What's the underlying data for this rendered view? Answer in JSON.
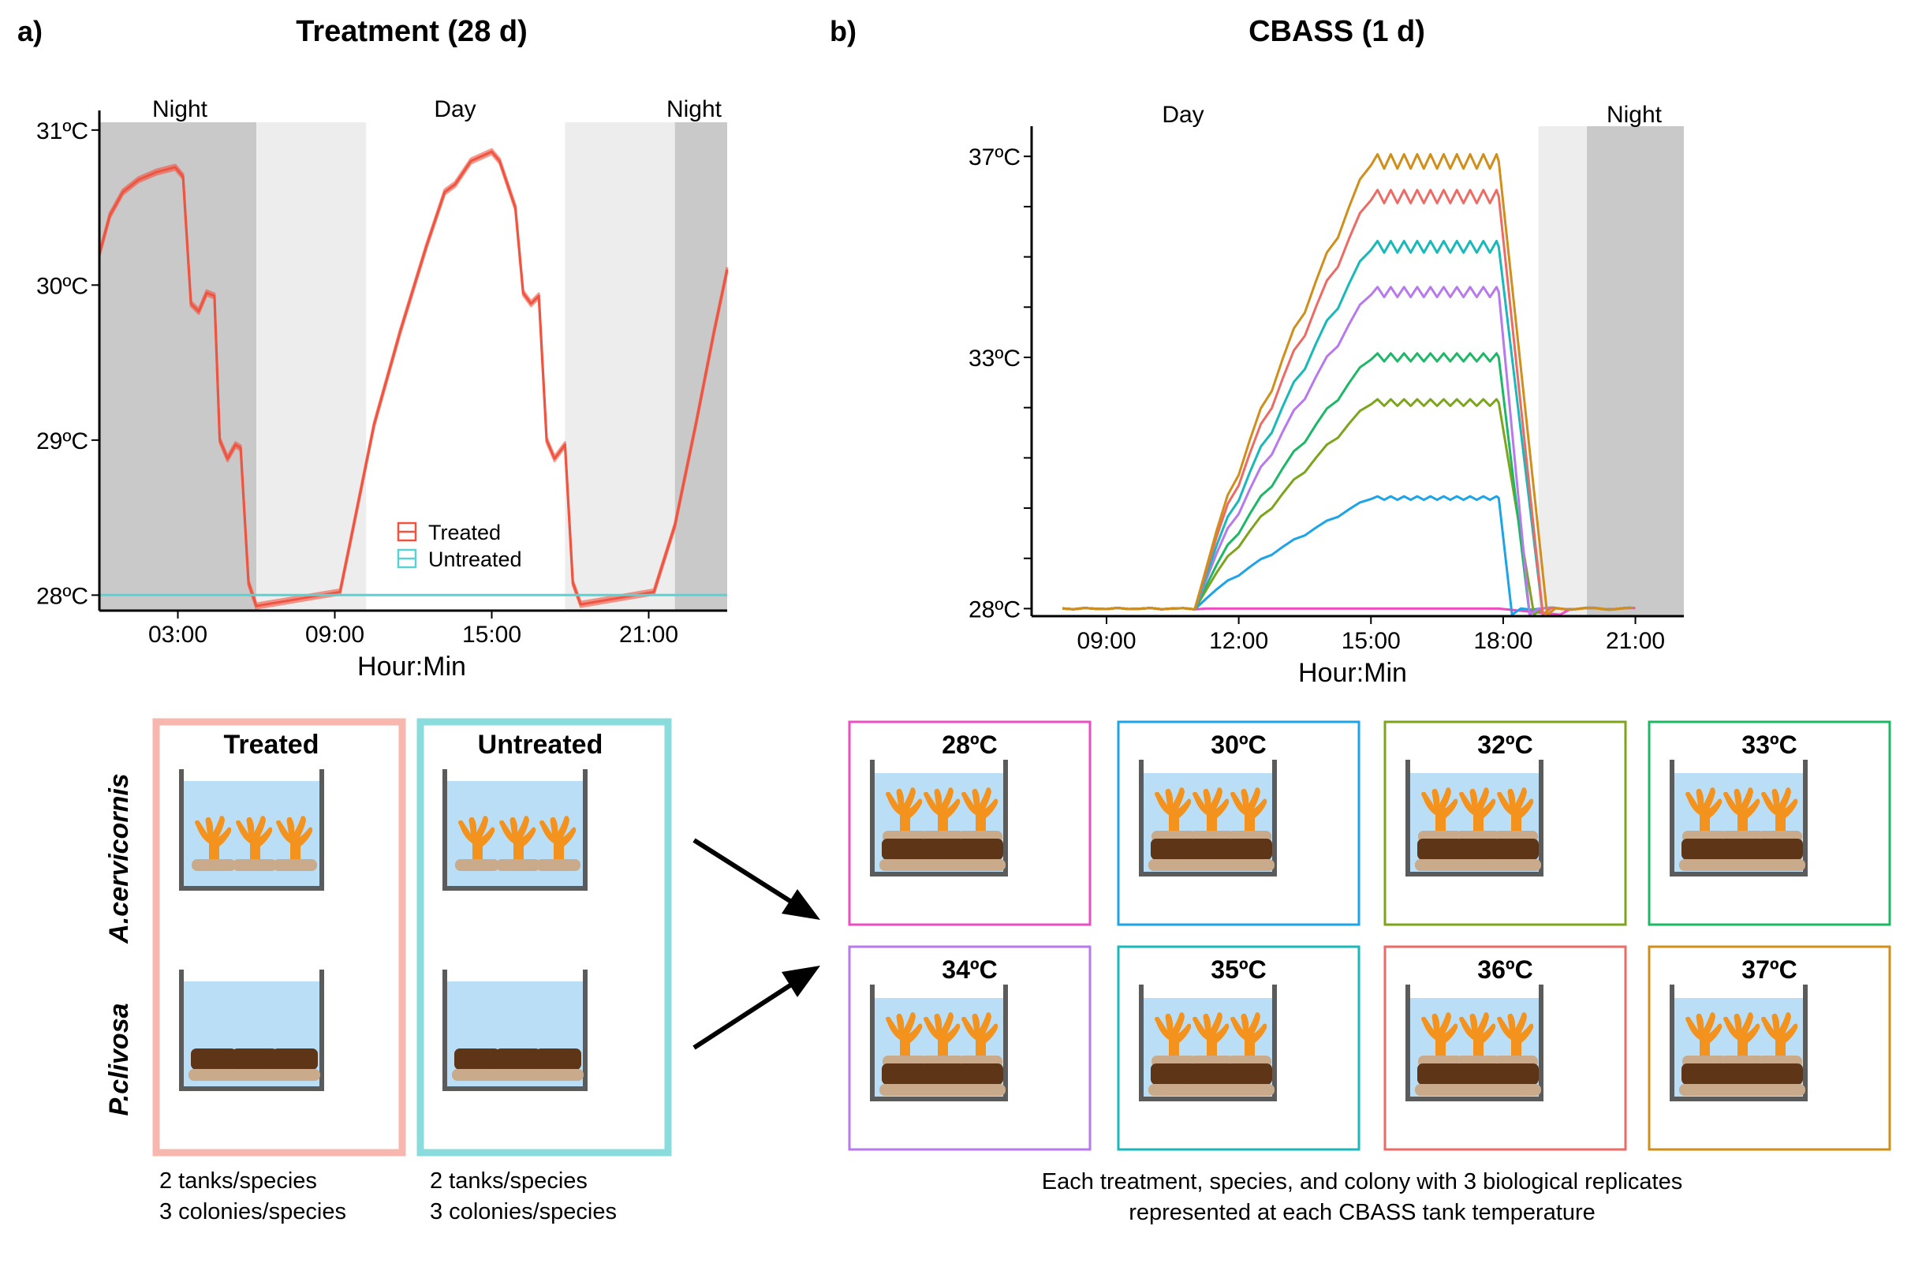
{
  "panel_a": {
    "label": "a)",
    "title": "Treatment (28 d)",
    "periods": [
      "Night",
      "Day",
      "Night"
    ],
    "legend": [
      {
        "label": "Treated",
        "color": "#F0533F"
      },
      {
        "label": "Untreated",
        "color": "#5CD1D4"
      }
    ],
    "boxes": [
      {
        "title": "Treated",
        "color": "#F7B7AE",
        "note": [
          "2 tanks/species",
          "3 colonies/species"
        ]
      },
      {
        "title": "Untreated",
        "color": "#8ADCDC",
        "note": [
          "2 tanks/species",
          "3 colonies/species"
        ]
      }
    ],
    "species": [
      "A.cervicornis",
      "P.clivosa"
    ]
  },
  "panel_b": {
    "label": "b)",
    "title": "CBASS (1 d)",
    "periods": [
      "Day",
      "Night"
    ],
    "tanks": [
      {
        "label": "28ºC",
        "color": "#EE4DC0"
      },
      {
        "label": "30ºC",
        "color": "#1CA3E8"
      },
      {
        "label": "32ºC",
        "color": "#7CA51C"
      },
      {
        "label": "33ºC",
        "color": "#1DB866"
      },
      {
        "label": "34ºC",
        "color": "#B878EE"
      },
      {
        "label": "35ºC",
        "color": "#19B8BA"
      },
      {
        "label": "36ºC",
        "color": "#EE6B65"
      },
      {
        "label": "37ºC",
        "color": "#D08E1A"
      }
    ],
    "note": [
      "Each treatment, species, and colony with 3 biological replicates",
      "represented at each CBASS tank temperature"
    ]
  },
  "chart_data": [
    {
      "type": "line",
      "title": "Treatment (28 d)",
      "xlabel": "Hour:Min",
      "ylabel": "",
      "x_ticks": [
        "03:00",
        "09:00",
        "15:00",
        "21:00"
      ],
      "y_ticks": [
        "28ºC",
        "29ºC",
        "30ºC",
        "31ºC"
      ],
      "xlim_hours": [
        0,
        24
      ],
      "ylim": [
        27.9,
        31.05
      ],
      "shading": [
        {
          "from": 0,
          "to": 6,
          "tone": "dark"
        },
        {
          "from": 6,
          "to": 10.2,
          "tone": "light"
        },
        {
          "from": 17.8,
          "to": 22,
          "tone": "light"
        },
        {
          "from": 22,
          "to": 24,
          "tone": "dark"
        }
      ],
      "legend_position": "center",
      "series": [
        {
          "name": "Treated",
          "color": "#F0533F",
          "x": [
            0,
            0.4,
            0.9,
            1.5,
            2.2,
            2.9,
            3.2,
            3.5,
            3.8,
            4.1,
            4.4,
            4.6,
            4.9,
            5.2,
            5.4,
            5.7,
            6.0,
            9.2,
            9.6,
            10.5,
            11.5,
            12.5,
            13.2,
            13.6,
            14.2,
            15.0,
            15.3,
            15.9,
            16.2,
            16.5,
            16.8,
            17.1,
            17.4,
            17.8,
            18.1,
            18.4,
            21.2,
            22.0,
            22.8,
            23.5,
            24.0
          ],
          "y": [
            30.2,
            30.45,
            30.6,
            30.68,
            30.73,
            30.76,
            30.7,
            29.88,
            29.83,
            29.95,
            29.93,
            29.0,
            28.88,
            28.97,
            28.95,
            28.08,
            27.93,
            28.02,
            28.35,
            29.1,
            29.7,
            30.25,
            30.6,
            30.65,
            30.8,
            30.86,
            30.8,
            30.5,
            29.95,
            29.88,
            29.93,
            29.0,
            28.88,
            28.97,
            28.08,
            27.94,
            28.02,
            28.45,
            29.1,
            29.7,
            30.1
          ]
        },
        {
          "name": "Untreated",
          "color": "#5CD1D4",
          "x": [
            0,
            24
          ],
          "y": [
            28.0,
            28.0
          ]
        }
      ]
    },
    {
      "type": "line",
      "title": "CBASS (1 d)",
      "xlabel": "Hour:Min",
      "ylabel": "",
      "x_ticks": [
        "09:00",
        "12:00",
        "15:00",
        "18:00",
        "21:00"
      ],
      "y_ticks": [
        "28ºC",
        "33ºC",
        "37ºC"
      ],
      "xlim_hours": [
        7.3,
        22.1
      ],
      "ylim": [
        27.85,
        37.6
      ],
      "shading": [
        {
          "from": 18.8,
          "to": 19.9,
          "tone": "light"
        },
        {
          "from": 19.9,
          "to": 22.1,
          "tone": "dark"
        }
      ],
      "hold": {
        "ramp_start": 11,
        "hold_start": 15,
        "hold_end": 17.9,
        "cooldown_start": 18.5,
        "baseline": 28.0
      },
      "series": [
        {
          "name": "28ºC",
          "color": "#EE4DC0",
          "target": 28.0,
          "end": 19.3
        },
        {
          "name": "30ºC",
          "color": "#1CA3E8",
          "target": 30.2,
          "end": 18.2
        },
        {
          "name": "32ºC",
          "color": "#7CA51C",
          "target": 32.1,
          "end": 18.7
        },
        {
          "name": "33ºC",
          "color": "#1DB866",
          "target": 33.0,
          "end": 18.6
        },
        {
          "name": "34ºC",
          "color": "#B878EE",
          "target": 34.3,
          "end": 18.6
        },
        {
          "name": "35ºC",
          "color": "#19B8BA",
          "target": 35.2,
          "end": 18.9
        },
        {
          "name": "36ºC",
          "color": "#EE6B65",
          "target": 36.2,
          "end": 18.9
        },
        {
          "name": "37ºC",
          "color": "#D08E1A",
          "target": 36.9,
          "end": 19.0
        }
      ]
    }
  ]
}
